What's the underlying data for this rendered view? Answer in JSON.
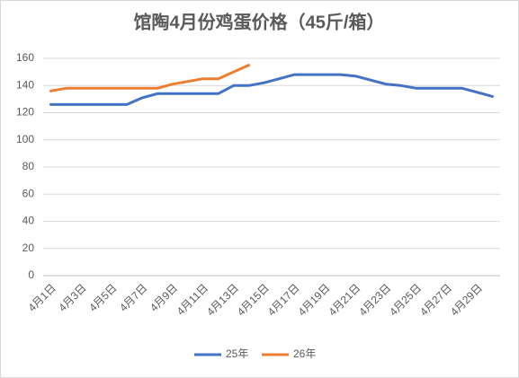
{
  "chart_data": {
    "type": "line",
    "title": "馆陶4月份鸡蛋价格（45斤/箱）",
    "categories": [
      "4月1日",
      null,
      "4月3日",
      null,
      "4月5日",
      null,
      "4月7日",
      null,
      "4月9日",
      null,
      "4月11日",
      null,
      "4月13日",
      null,
      "4月15日",
      null,
      "4月17日",
      null,
      "4月19日",
      null,
      "4月21日",
      null,
      "4月23日",
      null,
      "4月25日",
      null,
      "4月27日",
      null,
      "4月29日",
      null
    ],
    "series": [
      {
        "name": "25年",
        "color": "#4472c4",
        "values": [
          126,
          126,
          126,
          126,
          126,
          126,
          131,
          134,
          134,
          134,
          134,
          134,
          140,
          140,
          142,
          145,
          148,
          148,
          148,
          148,
          147,
          144,
          141,
          140,
          138,
          138,
          138,
          138,
          135,
          132
        ]
      },
      {
        "name": "26年",
        "color": "#ed7d31",
        "values": [
          136,
          138,
          138,
          138,
          138,
          138,
          138,
          138,
          141,
          143,
          145,
          145,
          150,
          155,
          null,
          null,
          null,
          null,
          null,
          null,
          null,
          null,
          null,
          null,
          null,
          null,
          null,
          null,
          null,
          null
        ]
      }
    ],
    "ylim": [
      0,
      160
    ],
    "yticks": [
      0,
      20,
      40,
      60,
      80,
      100,
      120,
      140,
      160
    ],
    "grid": true,
    "legend": "bottom"
  }
}
